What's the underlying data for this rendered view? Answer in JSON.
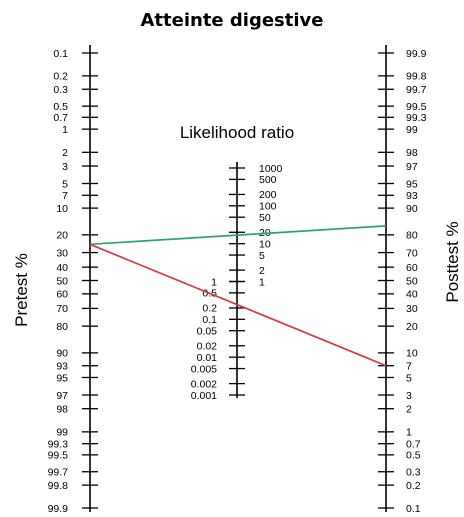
{
  "title": "Atteinte digestive",
  "pretest": {
    "label": "Pretest %",
    "ticks": [
      "0.1",
      "0.2",
      "0.3",
      "0.5",
      "0.7",
      "1",
      "2",
      "3",
      "5",
      "7",
      "10",
      "20",
      "30",
      "40",
      "50",
      "60",
      "70",
      "80",
      "90",
      "93",
      "95",
      "97",
      "98",
      "99",
      "99.3",
      "99.5",
      "99.7",
      "99.8",
      "99.9"
    ]
  },
  "likelihood": {
    "label": "Likelihood ratio",
    "upper_ticks": [
      "1000",
      "500",
      "200",
      "100",
      "50",
      "20",
      "10",
      "5",
      "2",
      "1"
    ],
    "lower_ticks": [
      "1",
      "0.5",
      "0.2",
      "0.1",
      "0.05",
      "0.02",
      "0.01",
      "0.005",
      "0.002",
      "0.001"
    ]
  },
  "posttest": {
    "label": "Posttest %",
    "ticks": [
      "99.9",
      "99.8",
      "99.7",
      "99.5",
      "99.3",
      "99",
      "98",
      "97",
      "95",
      "93",
      "90",
      "80",
      "70",
      "60",
      "50",
      "40",
      "30",
      "20",
      "10",
      "7",
      "5",
      "3",
      "2",
      "1",
      "0.7",
      "0.5",
      "0.3",
      "0.2",
      "0.1"
    ]
  },
  "lines": [
    {
      "name": "positive-result-line",
      "color": "#2fa36b",
      "pretest": 25,
      "posttest": 84
    },
    {
      "name": "negative-result-line",
      "color": "#d63a3a",
      "pretest": 25,
      "posttest": 7
    }
  ]
}
